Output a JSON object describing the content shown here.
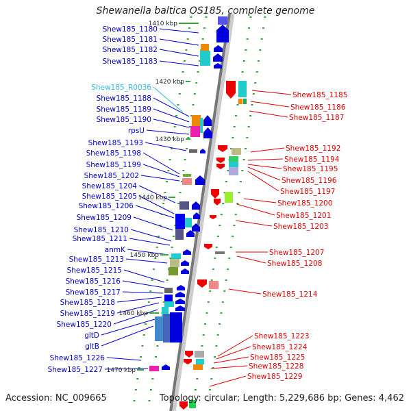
{
  "title": "Shewanella baltica OS185, complete genome",
  "footer": {
    "accession": "Accession: NC_009665",
    "topology": "Topology: circular; Length: 5,229,686 bp; Genes: 4,462"
  },
  "colors": {
    "forward_label": "#0000cc",
    "reverse_label": "#dd0000",
    "rna_label": "#33bbdd",
    "axis": "#888888",
    "tick": "#33aa33"
  },
  "kbp_ticks": [
    "1410 kbp",
    "1420 kbp",
    "1430 kbp",
    "1440 kbp",
    "1450 kbp",
    "1460 kbp",
    "1470 kbp"
  ],
  "left_genes": [
    "Shew185_1180",
    "Shew185_1181",
    "Shew185_1182",
    "Shew185_1183",
    "Shew185_R0036",
    "Shew185_1188",
    "Shew185_1189",
    "Shew185_1190",
    "rpsU",
    "Shew185_1193",
    "Shew185_1198",
    "Shew185_1199",
    "Shew185_1202",
    "Shew185_1204",
    "Shew185_1205",
    "Shew185_1206",
    "Shew185_1209",
    "Shew185_1210",
    "Shew185_1211",
    "anmK",
    "Shew185_1213",
    "Shew185_1215",
    "Shew185_1216",
    "Shew185_1217",
    "Shew185_1218",
    "Shew185_1219",
    "Shew185_1220",
    "gltD",
    "gltB",
    "Shew185_1226",
    "Shew185_1227"
  ],
  "right_genes": [
    "Shew185_1185",
    "Shew185_1186",
    "Shew185_1187",
    "Shew185_1192",
    "Shew185_1194",
    "Shew185_1195",
    "Shew185_1196",
    "Shew185_1197",
    "Shew185_1200",
    "Shew185_1201",
    "Shew185_1203",
    "Shew185_1207",
    "Shew185_1208",
    "Shew185_1214",
    "Shew185_1223",
    "Shew185_1224",
    "Shew185_1225",
    "Shew185_1228",
    "Shew185_1229"
  ]
}
